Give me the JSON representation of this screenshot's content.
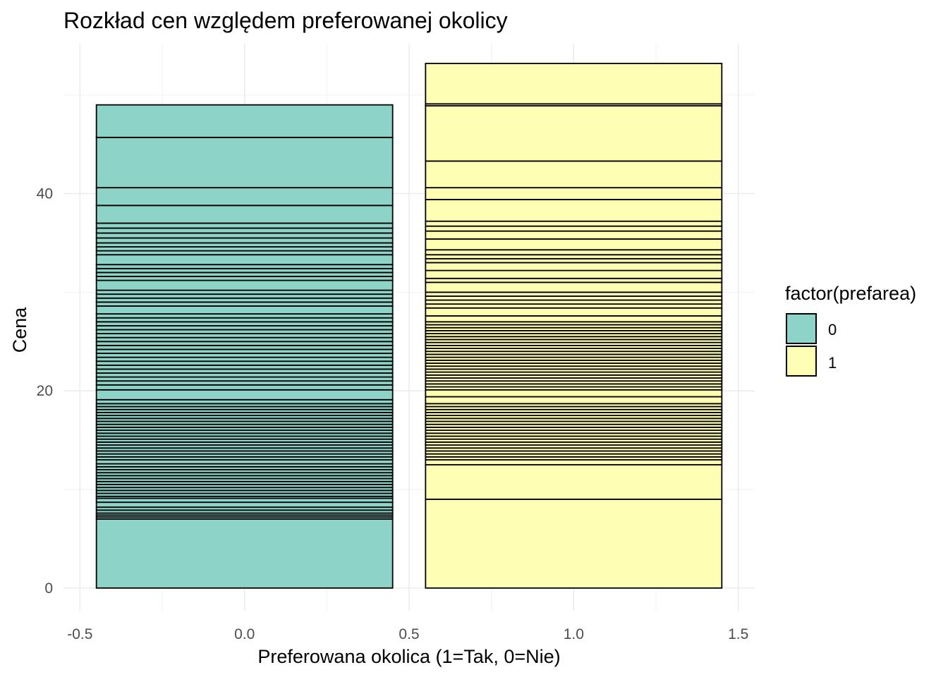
{
  "chart_data": {
    "type": "bar",
    "title": "Rozkład cen względem preferowanej okolicy",
    "xlabel": "Preferowana okolica (1=Tak, 0=Nie)",
    "ylabel": "Cena",
    "xlim": [
      -0.55,
      1.55
    ],
    "ylim": [
      -2.3,
      55.2
    ],
    "x_ticks": [
      -0.5,
      0.0,
      0.5,
      1.0,
      1.5
    ],
    "x_tick_labels": [
      "-0.5",
      "0.0",
      "0.5",
      "1.0",
      "1.5"
    ],
    "y_ticks": [
      0,
      20,
      40
    ],
    "y_tick_labels": [
      "0",
      "20",
      "40"
    ],
    "grid": true,
    "legend": {
      "title": "factor(prefarea)",
      "position": "right",
      "entries": [
        {
          "label": "0",
          "color": "#8DD3C7"
        },
        {
          "label": "1",
          "color": "#FFFFB3"
        }
      ]
    },
    "bar_width": 0.9,
    "series": [
      {
        "name": "0",
        "x": 0,
        "color": "#8DD3C7",
        "total": 49.0,
        "boundaries": [
          7.0,
          7.2,
          7.4,
          7.6,
          7.9,
          8.2,
          8.7,
          9.1,
          9.3,
          9.6,
          9.9,
          10.2,
          10.5,
          10.8,
          11.1,
          11.4,
          11.7,
          12.0,
          12.3,
          12.6,
          13.0,
          13.3,
          13.6,
          13.9,
          14.2,
          14.5,
          14.8,
          15.1,
          15.4,
          15.7,
          16.0,
          16.3,
          16.6,
          16.9,
          17.2,
          17.5,
          17.8,
          18.1,
          18.4,
          18.7,
          19.1,
          20.1,
          20.6,
          21.0,
          21.4,
          21.8,
          22.2,
          22.6,
          23.0,
          23.4,
          23.8,
          24.2,
          24.6,
          25.0,
          25.4,
          25.8,
          26.2,
          26.6,
          27.0,
          27.4,
          27.8,
          28.6,
          29.0,
          29.4,
          29.8,
          30.2,
          31.2,
          31.6,
          32.0,
          32.4,
          32.8,
          33.8,
          34.2,
          34.6,
          35.0,
          35.5,
          36.0,
          36.5,
          37.0,
          38.8,
          40.6,
          45.7
        ]
      },
      {
        "name": "1",
        "x": 1,
        "color": "#FFFFB3",
        "total": 53.2,
        "boundaries": [
          9.0,
          12.5,
          13.0,
          13.3,
          13.6,
          13.9,
          14.2,
          14.5,
          14.8,
          15.1,
          15.4,
          15.7,
          16.0,
          16.3,
          16.6,
          16.9,
          17.2,
          17.5,
          17.8,
          18.1,
          18.4,
          18.7,
          19.4,
          20.1,
          20.4,
          20.7,
          21.0,
          21.3,
          21.6,
          21.9,
          22.2,
          22.5,
          22.8,
          23.1,
          23.4,
          23.7,
          24.0,
          24.3,
          24.6,
          24.9,
          25.2,
          25.5,
          25.8,
          26.1,
          26.4,
          26.7,
          27.0,
          27.6,
          28.4,
          28.8,
          29.2,
          29.6,
          30.0,
          31.0,
          31.4,
          32.2,
          33.0,
          33.4,
          33.8,
          34.3,
          35.4,
          36.2,
          36.7,
          37.2,
          39.4,
          40.6,
          43.3,
          48.9,
          49.1
        ]
      }
    ]
  }
}
